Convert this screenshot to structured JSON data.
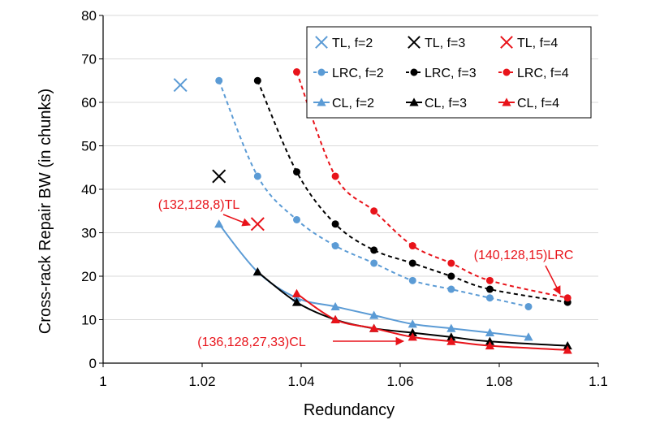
{
  "chart_data": {
    "type": "scatter",
    "xlabel": "Redundancy",
    "ylabel": "Cross-rack Repair BW (in chunks)",
    "xlim": [
      1,
      1.1
    ],
    "ylim": [
      0,
      80
    ],
    "xticks": [
      1,
      1.02,
      1.04,
      1.06,
      1.08,
      1.1
    ],
    "xtick_labels": [
      "1",
      "1.02",
      "1.04",
      "1.06",
      "1.08",
      "1.1"
    ],
    "yticks": [
      0,
      10,
      20,
      30,
      40,
      50,
      60,
      70,
      80
    ],
    "yticks_labels": [
      "0",
      "10",
      "20",
      "30",
      "40",
      "50",
      "60",
      "70",
      "80"
    ],
    "grid": "horizontal",
    "legend_position": "top-right",
    "series": [
      {
        "name": "TL, f=2",
        "color": "#5b9bd5",
        "marker": "x",
        "line": "none",
        "x": [
          1.0156
        ],
        "y": [
          64
        ]
      },
      {
        "name": "TL, f=3",
        "color": "#000000",
        "marker": "x",
        "line": "none",
        "x": [
          1.0234
        ],
        "y": [
          43
        ]
      },
      {
        "name": "TL, f=4",
        "color": "#e8131a",
        "marker": "x",
        "line": "none",
        "x": [
          1.0312
        ],
        "y": [
          32
        ]
      },
      {
        "name": "LRC, f=2",
        "color": "#5b9bd5",
        "marker": "circle",
        "line": "dashed",
        "x": [
          1.0234,
          1.0312,
          1.0391,
          1.0469,
          1.0547,
          1.0625,
          1.0703,
          1.0781,
          1.0859
        ],
        "y": [
          65,
          43,
          33,
          27,
          23,
          19,
          17,
          15,
          13
        ]
      },
      {
        "name": "LRC, f=3",
        "color": "#000000",
        "marker": "circle",
        "line": "dashed",
        "x": [
          1.0312,
          1.0391,
          1.0469,
          1.0547,
          1.0625,
          1.0703,
          1.0781,
          1.0938
        ],
        "y": [
          65,
          44,
          32,
          26,
          23,
          20,
          17,
          14
        ]
      },
      {
        "name": "LRC, f=4",
        "color": "#e8131a",
        "marker": "circle",
        "line": "dashed",
        "x": [
          1.0391,
          1.0469,
          1.0547,
          1.0625,
          1.0703,
          1.0781,
          1.0938
        ],
        "y": [
          67,
          43,
          35,
          27,
          23,
          19,
          15
        ]
      },
      {
        "name": "CL, f=2",
        "color": "#5b9bd5",
        "marker": "triangle",
        "line": "solid",
        "x": [
          1.0234,
          1.0312,
          1.0391,
          1.0469,
          1.0547,
          1.0625,
          1.0703,
          1.0781,
          1.0859
        ],
        "y": [
          32,
          21,
          15,
          13,
          11,
          9,
          8,
          7,
          6
        ]
      },
      {
        "name": "CL, f=3",
        "color": "#000000",
        "marker": "triangle",
        "line": "solid",
        "x": [
          1.0312,
          1.0391,
          1.0469,
          1.0547,
          1.0625,
          1.0703,
          1.0781,
          1.0938
        ],
        "y": [
          21,
          14,
          10,
          8,
          7,
          6,
          5,
          4
        ]
      },
      {
        "name": "CL, f=4",
        "color": "#e8131a",
        "marker": "triangle",
        "line": "solid",
        "x": [
          1.0391,
          1.0469,
          1.0547,
          1.0625,
          1.0703,
          1.0781,
          1.0938
        ],
        "y": [
          16,
          10,
          8,
          6,
          5,
          4,
          3
        ]
      }
    ],
    "annotations": [
      {
        "text": "(132,128,8)TL",
        "color": "#e8131a",
        "target_x": 1.0312,
        "target_y": 32
      },
      {
        "text": "(140,128,15)LRC",
        "color": "#e8131a",
        "target_x": 1.0938,
        "target_y": 15
      },
      {
        "text": "(136,128,27,33)CL",
        "color": "#e8131a",
        "target_x": 1.0625,
        "target_y": 6
      }
    ]
  }
}
